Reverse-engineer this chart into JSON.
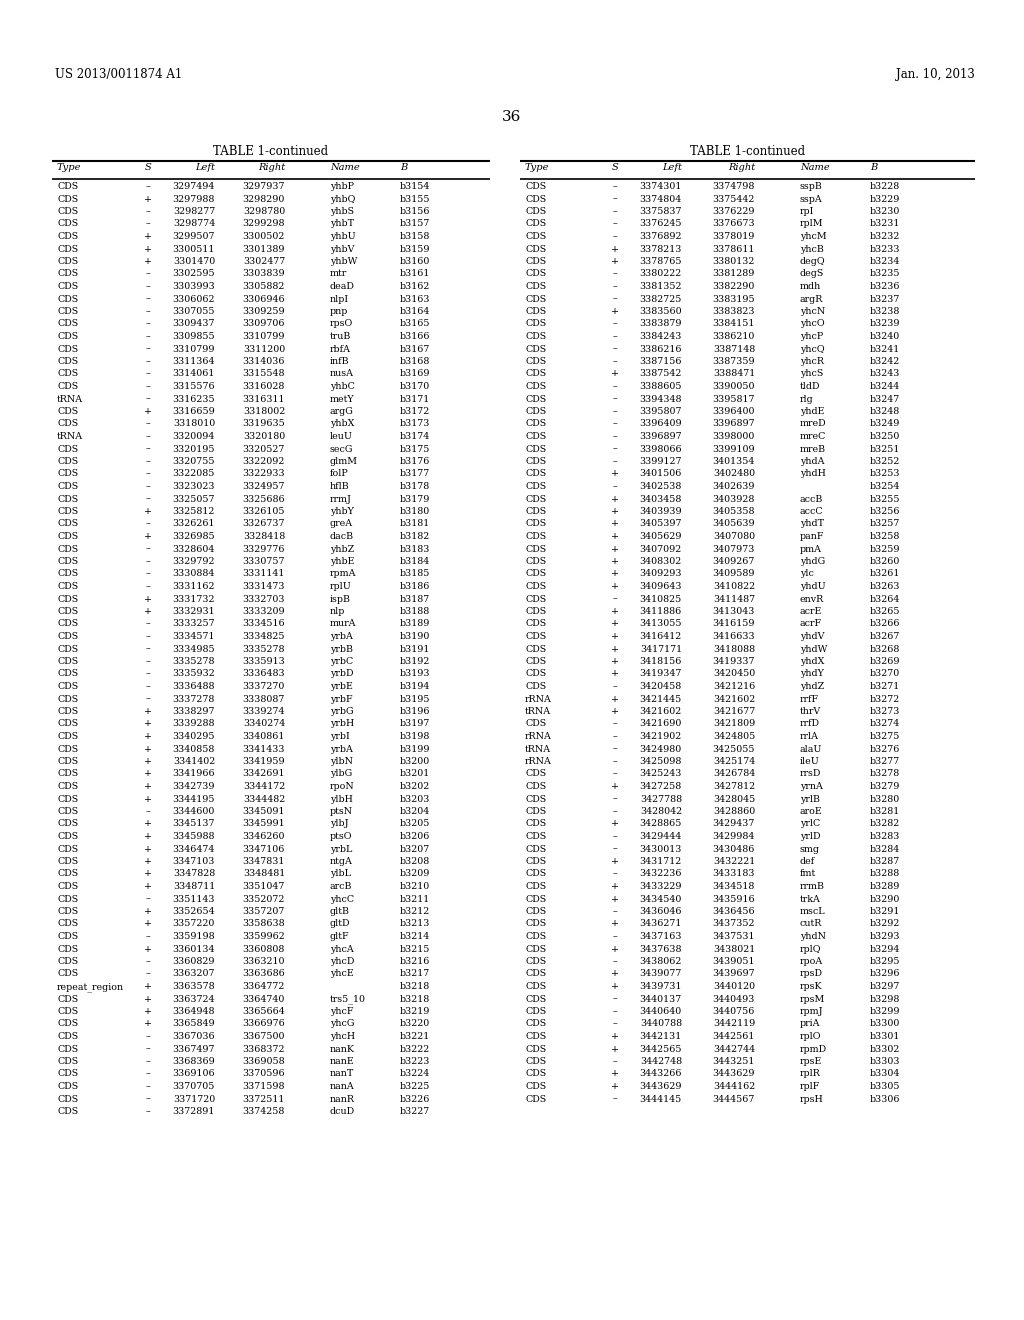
{
  "header_left": "US 2013/0011874 A1",
  "header_right": "Jan. 10, 2013",
  "page_number": "36",
  "col_headers": [
    "Type",
    "S",
    "Left",
    "Right",
    "Name",
    "B"
  ],
  "left_table": [
    [
      "CDS",
      "–",
      "3297494",
      "3297937",
      "yhbP",
      "b3154"
    ],
    [
      "CDS",
      "+",
      "3297988",
      "3298290",
      "yhbQ",
      "b3155"
    ],
    [
      "CDS",
      "–",
      "3298277",
      "3298780",
      "yhbS",
      "b3156"
    ],
    [
      "CDS",
      "–",
      "3298774",
      "3299298",
      "yhbT",
      "b3157"
    ],
    [
      "CDS",
      "+",
      "3299507",
      "3300502",
      "yhbU",
      "b3158"
    ],
    [
      "CDS",
      "+",
      "3300511",
      "3301389",
      "yhbV",
      "b3159"
    ],
    [
      "CDS",
      "+",
      "3301470",
      "3302477",
      "yhbW",
      "b3160"
    ],
    [
      "CDS",
      "–",
      "3302595",
      "3303839",
      "mtr",
      "b3161"
    ],
    [
      "CDS",
      "–",
      "3303993",
      "3305882",
      "deaD",
      "b3162"
    ],
    [
      "CDS",
      "–",
      "3306062",
      "3306946",
      "nlpI",
      "b3163"
    ],
    [
      "CDS",
      "–",
      "3307055",
      "3309259",
      "pnp",
      "b3164"
    ],
    [
      "CDS",
      "–",
      "3309437",
      "3309706",
      "rpsO",
      "b3165"
    ],
    [
      "CDS",
      "–",
      "3309855",
      "3310799",
      "truB",
      "b3166"
    ],
    [
      "CDS",
      "–",
      "3310799",
      "3311200",
      "rbfA",
      "b3167"
    ],
    [
      "CDS",
      "–",
      "3311364",
      "3314036",
      "infB",
      "b3168"
    ],
    [
      "CDS",
      "–",
      "3314061",
      "3315548",
      "nusA",
      "b3169"
    ],
    [
      "CDS",
      "–",
      "3315576",
      "3316028",
      "yhbC",
      "b3170"
    ],
    [
      "tRNA",
      "–",
      "3316235",
      "3316311",
      "metY",
      "b3171"
    ],
    [
      "CDS",
      "+",
      "3316659",
      "3318002",
      "argG",
      "b3172"
    ],
    [
      "CDS",
      "–",
      "3318010",
      "3319635",
      "yhbX",
      "b3173"
    ],
    [
      "tRNA",
      "–",
      "3320094",
      "3320180",
      "leuU",
      "b3174"
    ],
    [
      "CDS",
      "–",
      "3320195",
      "3320527",
      "secG",
      "b3175"
    ],
    [
      "CDS",
      "–",
      "3320755",
      "3322092",
      "glmM",
      "b3176"
    ],
    [
      "CDS",
      "–",
      "3322085",
      "3322933",
      "folP",
      "b3177"
    ],
    [
      "CDS",
      "–",
      "3323023",
      "3324957",
      "hflB",
      "b3178"
    ],
    [
      "CDS",
      "–",
      "3325057",
      "3325686",
      "rrmJ",
      "b3179"
    ],
    [
      "CDS",
      "+",
      "3325812",
      "3326105",
      "yhbY",
      "b3180"
    ],
    [
      "CDS",
      "–",
      "3326261",
      "3326737",
      "greA",
      "b3181"
    ],
    [
      "CDS",
      "+",
      "3326985",
      "3328418",
      "dacB",
      "b3182"
    ],
    [
      "CDS",
      "–",
      "3328604",
      "3329776",
      "yhbZ",
      "b3183"
    ],
    [
      "CDS",
      "–",
      "3329792",
      "3330757",
      "yhbE",
      "b3184"
    ],
    [
      "CDS",
      "–",
      "3330884",
      "3331141",
      "rpmA",
      "b3185"
    ],
    [
      "CDS",
      "–",
      "3331162",
      "3331473",
      "rplU",
      "b3186"
    ],
    [
      "CDS",
      "+",
      "3331732",
      "3332703",
      "ispB",
      "b3187"
    ],
    [
      "CDS",
      "+",
      "3332931",
      "3333209",
      "nlp",
      "b3188"
    ],
    [
      "CDS",
      "–",
      "3333257",
      "3334516",
      "murA",
      "b3189"
    ],
    [
      "CDS",
      "–",
      "3334571",
      "3334825",
      "yrbA",
      "b3190"
    ],
    [
      "CDS",
      "–",
      "3334985",
      "3335278",
      "yrbB",
      "b3191"
    ],
    [
      "CDS",
      "–",
      "3335278",
      "3335913",
      "yrbC",
      "b3192"
    ],
    [
      "CDS",
      "–",
      "3335932",
      "3336483",
      "yrbD",
      "b3193"
    ],
    [
      "CDS",
      "–",
      "3336488",
      "3337270",
      "yrbE",
      "b3194"
    ],
    [
      "CDS",
      "–",
      "3337278",
      "3338087",
      "yrbF",
      "b3195"
    ],
    [
      "CDS",
      "+",
      "3338297",
      "3339274",
      "yrbG",
      "b3196"
    ],
    [
      "CDS",
      "+",
      "3339288",
      "3340274",
      "yrbH",
      "b3197"
    ],
    [
      "CDS",
      "+",
      "3340295",
      "3340861",
      "yrbI",
      "b3198"
    ],
    [
      "CDS",
      "+",
      "3340858",
      "3341433",
      "yrbA",
      "b3199"
    ],
    [
      "CDS",
      "+",
      "3341402",
      "3341959",
      "ylbN",
      "b3200"
    ],
    [
      "CDS",
      "+",
      "3341966",
      "3342691",
      "ylbG",
      "b3201"
    ],
    [
      "CDS",
      "+",
      "3342739",
      "3344172",
      "rpoN",
      "b3202"
    ],
    [
      "CDS",
      "+",
      "3344195",
      "3344482",
      "ylbH",
      "b3203"
    ],
    [
      "CDS",
      "–",
      "3344600",
      "3345091",
      "ptsN",
      "b3204"
    ],
    [
      "CDS",
      "+",
      "3345137",
      "3345991",
      "ylbJ",
      "b3205"
    ],
    [
      "CDS",
      "+",
      "3345988",
      "3346260",
      "ptsO",
      "b3206"
    ],
    [
      "CDS",
      "+",
      "3346474",
      "3347106",
      "yrbL",
      "b3207"
    ],
    [
      "CDS",
      "+",
      "3347103",
      "3347831",
      "ntgA",
      "b3208"
    ],
    [
      "CDS",
      "+",
      "3347828",
      "3348481",
      "ylbL",
      "b3209"
    ],
    [
      "CDS",
      "+",
      "3348711",
      "3351047",
      "arcB",
      "b3210"
    ],
    [
      "CDS",
      "–",
      "3351143",
      "3352072",
      "yhcC",
      "b3211"
    ],
    [
      "CDS",
      "+",
      "3352654",
      "3357207",
      "gltB",
      "b3212"
    ],
    [
      "CDS",
      "+",
      "3357220",
      "3358638",
      "gltD",
      "b3213"
    ],
    [
      "CDS",
      "–",
      "3359198",
      "3359962",
      "gltF",
      "b3214"
    ],
    [
      "CDS",
      "+",
      "3360134",
      "3360808",
      "yhcA",
      "b3215"
    ],
    [
      "CDS",
      "–",
      "3360829",
      "3363210",
      "yhcD",
      "b3216"
    ],
    [
      "CDS",
      "–",
      "3363207",
      "3363686",
      "yhcE",
      "b3217"
    ],
    [
      "repeat_region",
      "+",
      "3363578",
      "3364772",
      "",
      "b3218"
    ],
    [
      "CDS",
      "+",
      "3363724",
      "3364740",
      "trs5_10",
      "b3218"
    ],
    [
      "CDS",
      "+",
      "3364948",
      "3365664",
      "yhcF",
      "b3219"
    ],
    [
      "CDS",
      "+",
      "3365849",
      "3366976",
      "yhcG",
      "b3220"
    ],
    [
      "CDS",
      "–",
      "3367036",
      "3367500",
      "yhcH",
      "b3221"
    ],
    [
      "CDS",
      "–",
      "3367497",
      "3368372",
      "nanK",
      "b3222"
    ],
    [
      "CDS",
      "–",
      "3368369",
      "3369058",
      "nanE",
      "b3223"
    ],
    [
      "CDS",
      "–",
      "3369106",
      "3370596",
      "nanT",
      "b3224"
    ],
    [
      "CDS",
      "–",
      "3370705",
      "3371598",
      "nanA",
      "b3225"
    ],
    [
      "CDS",
      "–",
      "3371720",
      "3372511",
      "nanR",
      "b3226"
    ],
    [
      "CDS",
      "–",
      "3372891",
      "3374258",
      "dcuD",
      "b3227"
    ]
  ],
  "right_table": [
    [
      "CDS",
      "–",
      "3374301",
      "3374798",
      "sspB",
      "b3228"
    ],
    [
      "CDS",
      "–",
      "3374804",
      "3375442",
      "sspA",
      "b3229"
    ],
    [
      "CDS",
      "–",
      "3375837",
      "3376229",
      "rpI",
      "b3230"
    ],
    [
      "CDS",
      "–",
      "3376245",
      "3376673",
      "rplM",
      "b3231"
    ],
    [
      "CDS",
      "–",
      "3376892",
      "3378019",
      "yhcM",
      "b3232"
    ],
    [
      "CDS",
      "+",
      "3378213",
      "3378611",
      "yhcB",
      "b3233"
    ],
    [
      "CDS",
      "+",
      "3378765",
      "3380132",
      "degQ",
      "b3234"
    ],
    [
      "CDS",
      "–",
      "3380222",
      "3381289",
      "degS",
      "b3235"
    ],
    [
      "CDS",
      "–",
      "3381352",
      "3382290",
      "mdh",
      "b3236"
    ],
    [
      "CDS",
      "–",
      "3382725",
      "3383195",
      "argR",
      "b3237"
    ],
    [
      "CDS",
      "+",
      "3383560",
      "3383823",
      "yhcN",
      "b3238"
    ],
    [
      "CDS",
      "–",
      "3383879",
      "3384151",
      "yhcO",
      "b3239"
    ],
    [
      "CDS",
      "–",
      "3384243",
      "3386210",
      "yhcP",
      "b3240"
    ],
    [
      "CDS",
      "–",
      "3386216",
      "3387148",
      "yhcQ",
      "b3241"
    ],
    [
      "CDS",
      "–",
      "3387156",
      "3387359",
      "yhcR",
      "b3242"
    ],
    [
      "CDS",
      "+",
      "3387542",
      "3388471",
      "yhcS",
      "b3243"
    ],
    [
      "CDS",
      "–",
      "3388605",
      "3390050",
      "tldD",
      "b3244"
    ],
    [
      "CDS",
      "–",
      "3394348",
      "3395817",
      "rlg",
      "b3247"
    ],
    [
      "CDS",
      "–",
      "3395807",
      "3396400",
      "yhdE",
      "b3248"
    ],
    [
      "CDS",
      "–",
      "3396409",
      "3396897",
      "mreD",
      "b3249"
    ],
    [
      "CDS",
      "–",
      "3396897",
      "3398000",
      "mreC",
      "b3250"
    ],
    [
      "CDS",
      "–",
      "3398066",
      "3399109",
      "mreB",
      "b3251"
    ],
    [
      "CDS",
      "–",
      "3399127",
      "3401354",
      "yhdA",
      "b3252"
    ],
    [
      "CDS",
      "+",
      "3401506",
      "3402480",
      "yhdH",
      "b3253"
    ],
    [
      "CDS",
      "–",
      "3402538",
      "3402639",
      "",
      "b3254"
    ],
    [
      "CDS",
      "+",
      "3403458",
      "3403928",
      "accB",
      "b3255"
    ],
    [
      "CDS",
      "+",
      "3403939",
      "3405358",
      "accC",
      "b3256"
    ],
    [
      "CDS",
      "+",
      "3405397",
      "3405639",
      "yhdT",
      "b3257"
    ],
    [
      "CDS",
      "+",
      "3405629",
      "3407080",
      "panF",
      "b3258"
    ],
    [
      "CDS",
      "+",
      "3407092",
      "3407973",
      "pmA",
      "b3259"
    ],
    [
      "CDS",
      "+",
      "3408302",
      "3409267",
      "yhdG",
      "b3260"
    ],
    [
      "CDS",
      "+",
      "3409293",
      "3409589",
      "ylc",
      "b3261"
    ],
    [
      "CDS",
      "+",
      "3409643",
      "3410822",
      "yhdU",
      "b3263"
    ],
    [
      "CDS",
      "–",
      "3410825",
      "3411487",
      "envR",
      "b3264"
    ],
    [
      "CDS",
      "+",
      "3411886",
      "3413043",
      "acrE",
      "b3265"
    ],
    [
      "CDS",
      "+",
      "3413055",
      "3416159",
      "acrF",
      "b3266"
    ],
    [
      "CDS",
      "+",
      "3416412",
      "3416633",
      "yhdV",
      "b3267"
    ],
    [
      "CDS",
      "+",
      "3417171",
      "3418088",
      "yhdW",
      "b3268"
    ],
    [
      "CDS",
      "+",
      "3418156",
      "3419337",
      "yhdX",
      "b3269"
    ],
    [
      "CDS",
      "+",
      "3419347",
      "3420450",
      "yhdY",
      "b3270"
    ],
    [
      "CDS",
      "–",
      "3420458",
      "3421216",
      "yhdZ",
      "b3271"
    ],
    [
      "rRNA",
      "+",
      "3421445",
      "3421602",
      "rrfF",
      "b3272"
    ],
    [
      "tRNA",
      "+",
      "3421602",
      "3421677",
      "thrV",
      "b3273"
    ],
    [
      "CDS",
      "–",
      "3421690",
      "3421809",
      "rrfD",
      "b3274"
    ],
    [
      "rRNA",
      "–",
      "3421902",
      "3424805",
      "rrlA",
      "b3275"
    ],
    [
      "tRNA",
      "–",
      "3424980",
      "3425055",
      "alaU",
      "b3276"
    ],
    [
      "rRNA",
      "–",
      "3425098",
      "3425174",
      "ileU",
      "b3277"
    ],
    [
      "CDS",
      "–",
      "3425243",
      "3426784",
      "rrsD",
      "b3278"
    ],
    [
      "CDS",
      "+",
      "3427258",
      "3427812",
      "yrnA",
      "b3279"
    ],
    [
      "CDS",
      "–",
      "3427788",
      "3428045",
      "yrlB",
      "b3280"
    ],
    [
      "CDS",
      "–",
      "3428042",
      "3428860",
      "aroE",
      "b3281"
    ],
    [
      "CDS",
      "+",
      "3428865",
      "3429437",
      "yrlC",
      "b3282"
    ],
    [
      "CDS",
      "–",
      "3429444",
      "3429984",
      "yrlD",
      "b3283"
    ],
    [
      "CDS",
      "–",
      "3430013",
      "3430486",
      "smg",
      "b3284"
    ],
    [
      "CDS",
      "+",
      "3431712",
      "3432221",
      "def",
      "b3287"
    ],
    [
      "CDS",
      "–",
      "3432236",
      "3433183",
      "fmt",
      "b3288"
    ],
    [
      "CDS",
      "+",
      "3433229",
      "3434518",
      "rrmB",
      "b3289"
    ],
    [
      "CDS",
      "+",
      "3434540",
      "3435916",
      "trkA",
      "b3290"
    ],
    [
      "CDS",
      "–",
      "3436046",
      "3436456",
      "mscL",
      "b3291"
    ],
    [
      "CDS",
      "+",
      "3436271",
      "3437352",
      "cutR",
      "b3292"
    ],
    [
      "CDS",
      "–",
      "3437163",
      "3437531",
      "yhdN",
      "b3293"
    ],
    [
      "CDS",
      "+",
      "3437638",
      "3438021",
      "rplQ",
      "b3294"
    ],
    [
      "CDS",
      "–",
      "3438062",
      "3439051",
      "rpoA",
      "b3295"
    ],
    [
      "CDS",
      "+",
      "3439077",
      "3439697",
      "rpsD",
      "b3296"
    ],
    [
      "CDS",
      "+",
      "3439731",
      "3440120",
      "rpsK",
      "b3297"
    ],
    [
      "CDS",
      "–",
      "3440137",
      "3440493",
      "rpsM",
      "b3298"
    ],
    [
      "CDS",
      "–",
      "3440640",
      "3440756",
      "rpmJ",
      "b3299"
    ],
    [
      "CDS",
      "–",
      "3440788",
      "3442119",
      "priA",
      "b3300"
    ],
    [
      "CDS",
      "+",
      "3442131",
      "3442561",
      "rplO",
      "b3301"
    ],
    [
      "CDS",
      "+",
      "3442565",
      "3442744",
      "rpmD",
      "b3302"
    ],
    [
      "CDS",
      "–",
      "3442748",
      "3443251",
      "rpsE",
      "b3303"
    ],
    [
      "CDS",
      "+",
      "3443266",
      "3443629",
      "rplR",
      "b3304"
    ],
    [
      "CDS",
      "+",
      "3443629",
      "3444162",
      "rplF",
      "b3305"
    ],
    [
      "CDS",
      "–",
      "3444145",
      "3444567",
      "rpsH",
      "b3306"
    ]
  ],
  "bg_color": "#ffffff",
  "text_color": "#000000"
}
